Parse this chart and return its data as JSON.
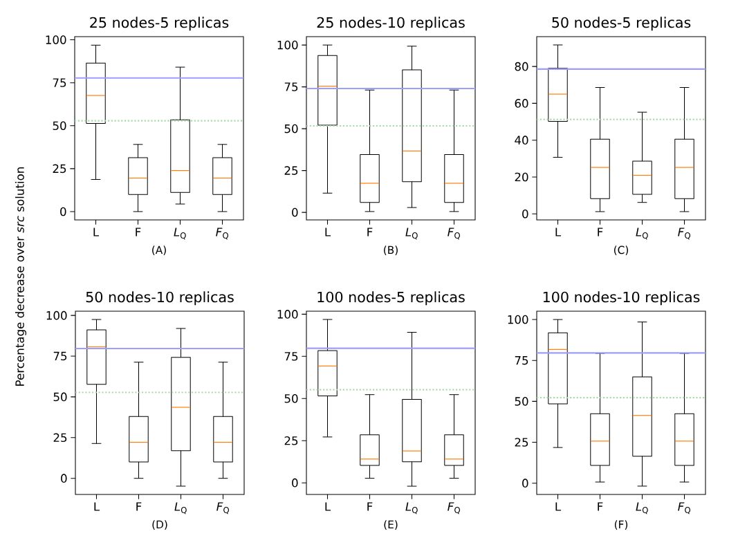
{
  "chart_data": [
    {
      "type": "box",
      "title": "25 nodes-5 replicas",
      "xlabel": "(A)",
      "ylabel": "Percentage decrease over *src* solution",
      "categories": [
        "L",
        "F",
        "*L*$_{Q}$",
        "*F*$_{Q}$"
      ],
      "boxes": [
        {
          "low": 18.7,
          "q1": 51.3,
          "median": 67.6,
          "q3": 86.4,
          "high": 96.9
        },
        {
          "low": 0,
          "q1": 9.9,
          "median": 19.5,
          "q3": 31.4,
          "high": 39.1
        },
        {
          "low": 4.4,
          "q1": 11.2,
          "median": 23.9,
          "q3": 53.4,
          "high": 84.1
        },
        {
          "low": 0,
          "q1": 9.9,
          "median": 19.5,
          "q3": 31.4,
          "high": 39.1
        }
      ],
      "ylim": [
        -4.85,
        101.85
      ],
      "yticks": [
        0,
        25,
        50,
        75,
        100
      ],
      "ref_lines": [
        {
          "axis": "y",
          "value": 77.8,
          "color": "#9d9dff",
          "line_style": "solid"
        },
        {
          "axis": "y",
          "value": 52.9,
          "color": "#a8d8a8",
          "line_style": "dotted"
        }
      ]
    },
    {
      "type": "box",
      "title": "25 nodes-10 replicas",
      "xlabel": "(B)",
      "categories": [
        "L",
        "F",
        "*L*$_{Q}$",
        "*F*$_{Q}$"
      ],
      "boxes": [
        {
          "low": 11.5,
          "q1": 52.1,
          "median": 75.4,
          "q3": 93.7,
          "high": 100
        },
        {
          "low": 0.5,
          "q1": 5.9,
          "median": 17.4,
          "q3": 34.5,
          "high": 73.1
        },
        {
          "low": 2.9,
          "q1": 18.3,
          "median": 36.7,
          "q3": 85.2,
          "high": 99.3
        },
        {
          "low": 0.5,
          "q1": 5.9,
          "median": 17.4,
          "q3": 34.5,
          "high": 73.1
        }
      ],
      "ylim": [
        -4.5,
        105
      ],
      "yticks": [
        0,
        25,
        50,
        75,
        100
      ],
      "ref_lines": [
        {
          "axis": "y",
          "value": 74.0,
          "color": "#9d9dff",
          "line_style": "solid"
        },
        {
          "axis": "y",
          "value": 51.7,
          "color": "#a8d8a8",
          "line_style": "dotted"
        }
      ]
    },
    {
      "type": "box",
      "title": "50 nodes-5 replicas",
      "xlabel": "(C)",
      "categories": [
        "L",
        "F",
        "*L*$_{Q}$",
        "*F*$_{Q}$"
      ],
      "boxes": [
        {
          "low": 30.7,
          "q1": 50.2,
          "median": 65.0,
          "q3": 79.0,
          "high": 91.7
        },
        {
          "low": 1.2,
          "q1": 8.2,
          "median": 25.2,
          "q3": 40.5,
          "high": 68.6
        },
        {
          "low": 6.2,
          "q1": 10.6,
          "median": 20.9,
          "q3": 28.6,
          "high": 55.2
        },
        {
          "low": 1.2,
          "q1": 8.2,
          "median": 25.2,
          "q3": 40.5,
          "high": 68.6
        }
      ],
      "ylim": [
        -3.3,
        96.2
      ],
      "yticks": [
        0,
        20,
        40,
        60,
        80
      ],
      "ref_lines": [
        {
          "axis": "y",
          "value": 78.6,
          "color": "#9d9dff",
          "line_style": "solid"
        },
        {
          "axis": "y",
          "value": 51.3,
          "color": "#a8d8a8",
          "line_style": "dotted"
        }
      ]
    },
    {
      "type": "box",
      "title": "50 nodes-10 replicas",
      "xlabel": "(D)",
      "categories": [
        "L",
        "F",
        "*L*$_{Q}$",
        "*F*$_{Q}$"
      ],
      "boxes": [
        {
          "low": 21.4,
          "q1": 57.7,
          "median": 80.7,
          "q3": 91.1,
          "high": 97.5
        },
        {
          "low": 0,
          "q1": 10.1,
          "median": 22.1,
          "q3": 38.0,
          "high": 71.3
        },
        {
          "low": -4.8,
          "q1": 16.9,
          "median": 43.6,
          "q3": 74.3,
          "high": 92.0
        },
        {
          "low": 0,
          "q1": 10.1,
          "median": 22.1,
          "q3": 38.0,
          "high": 71.3
        }
      ],
      "ylim": [
        -9.9,
        102.6
      ],
      "yticks": [
        0,
        25,
        50,
        75,
        100
      ],
      "ref_lines": [
        {
          "axis": "y",
          "value": 79.7,
          "color": "#9d9dff",
          "line_style": "solid"
        },
        {
          "axis": "y",
          "value": 52.7,
          "color": "#a8d8a8",
          "line_style": "dotted"
        }
      ]
    },
    {
      "type": "box",
      "title": "100 nodes-5 replicas",
      "xlabel": "(E)",
      "categories": [
        "L",
        "F",
        "*L*$_{Q}$",
        "*F*$_{Q}$"
      ],
      "boxes": [
        {
          "low": 27.2,
          "q1": 51.6,
          "median": 69.3,
          "q3": 78.4,
          "high": 96.9
        },
        {
          "low": 2.7,
          "q1": 10.3,
          "median": 14.1,
          "q3": 28.5,
          "high": 52.3
        },
        {
          "low": -2.0,
          "q1": 12.5,
          "median": 18.9,
          "q3": 49.5,
          "high": 89.3
        },
        {
          "low": 2.7,
          "q1": 10.3,
          "median": 14.1,
          "q3": 28.5,
          "high": 52.3
        }
      ],
      "ylim": [
        -6.9,
        101.8
      ],
      "yticks": [
        0,
        25,
        50,
        75,
        100
      ],
      "ref_lines": [
        {
          "axis": "y",
          "value": 79.8,
          "color": "#9d9dff",
          "line_style": "solid"
        },
        {
          "axis": "y",
          "value": 55.2,
          "color": "#a8d8a8",
          "line_style": "dotted"
        }
      ]
    },
    {
      "type": "box",
      "title": "100 nodes-10 replicas",
      "xlabel": "(F)",
      "categories": [
        "L",
        "F",
        "*L*$_{Q}$",
        "*F*$_{Q}$"
      ],
      "boxes": [
        {
          "low": 21.8,
          "q1": 48.5,
          "median": 81.7,
          "q3": 91.9,
          "high": 100
        },
        {
          "low": 0.7,
          "q1": 10.9,
          "median": 25.7,
          "q3": 42.4,
          "high": 79.3
        },
        {
          "low": -1.8,
          "q1": 16.4,
          "median": 41.4,
          "q3": 65.0,
          "high": 98.5
        },
        {
          "low": 0.7,
          "q1": 10.9,
          "median": 25.7,
          "q3": 42.4,
          "high": 79.3
        }
      ],
      "ylim": [
        -6.9,
        105.1
      ],
      "yticks": [
        0,
        25,
        50,
        75,
        100
      ],
      "ref_lines": [
        {
          "axis": "y",
          "value": 79.6,
          "color": "#9d9dff",
          "line_style": "solid"
        },
        {
          "axis": "y",
          "value": 52.2,
          "color": "#a8d8a8",
          "line_style": "dotted"
        }
      ]
    }
  ]
}
